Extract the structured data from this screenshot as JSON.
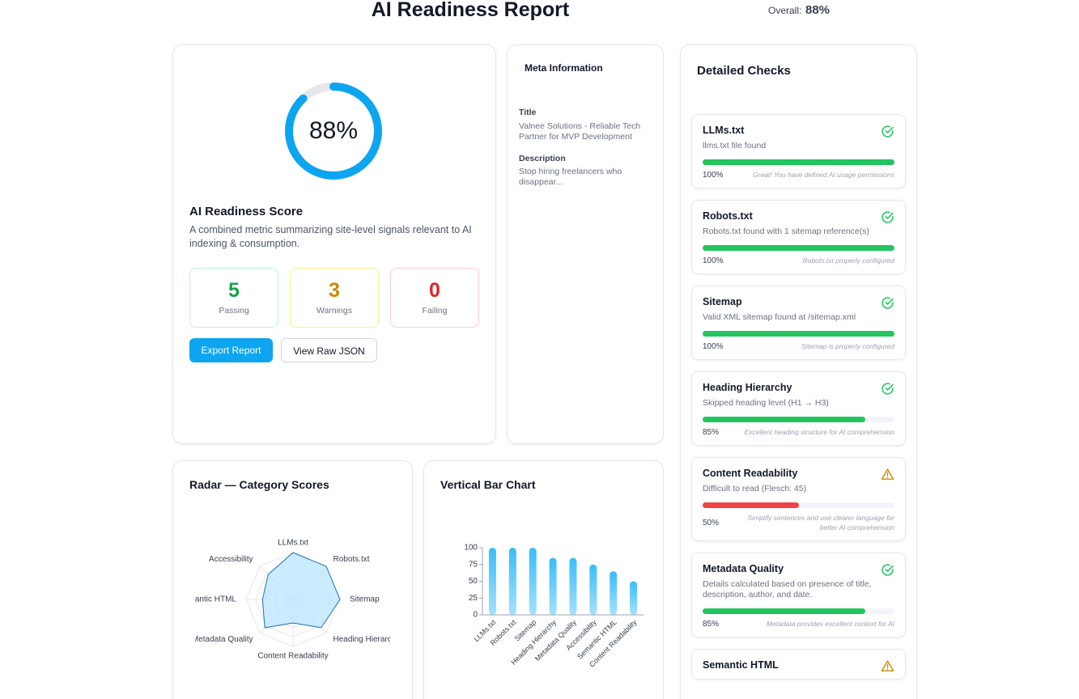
{
  "header": {
    "title": "AI Readiness Report",
    "overall_label": "Overall:",
    "overall_value": "88%"
  },
  "score_card": {
    "score": 88,
    "score_label": "88%",
    "title": "AI Readiness Score",
    "description": "A combined metric summarizing site-level signals relevant to AI indexing & consumption.",
    "stats": [
      {
        "value": 5,
        "label": "Passing"
      },
      {
        "value": 3,
        "label": "Warnings"
      },
      {
        "value": 0,
        "label": "Failing"
      }
    ],
    "buttons": [
      "Export Report",
      "View Raw JSON"
    ]
  },
  "meta": {
    "title": "Meta Information",
    "fields": [
      {
        "label": "Title",
        "value": "Valnee Solutions - Reliable Tech Partner for MVP Development"
      },
      {
        "label": "Description",
        "value": "Stop hiring freelancers who disappear..."
      }
    ]
  },
  "checks": {
    "title": "Detailed Checks",
    "items": [
      {
        "name": "LLMs.txt",
        "message": "llms.txt file found",
        "score": 100,
        "score_label": "100%",
        "note": "Great! You have defined AI usage permissions",
        "status": "pass",
        "color": "#22c55e"
      },
      {
        "name": "Robots.txt",
        "message": "Robots.txt found with 1 sitemap reference(s)",
        "score": 100,
        "score_label": "100%",
        "note": "Robots.txt properly configured",
        "status": "pass",
        "color": "#22c55e"
      },
      {
        "name": "Sitemap",
        "message": "Valid XML sitemap found at /sitemap.xml",
        "score": 100,
        "score_label": "100%",
        "note": "Sitemap is properly configured",
        "status": "pass",
        "color": "#22c55e"
      },
      {
        "name": "Heading Hierarchy",
        "message": "Skipped heading level (H1 → H3)",
        "score": 85,
        "score_label": "85%",
        "note": "Excellent heading structure for AI comprehension",
        "status": "pass",
        "color": "#22c55e"
      },
      {
        "name": "Content Readability",
        "message": "Difficult to read (Flesch: 45)",
        "score": 50,
        "score_label": "50%",
        "note": "Simplify sentences and use clearer language for better AI comprehension",
        "status": "warn",
        "color": "#ef4444"
      },
      {
        "name": "Metadata Quality",
        "message": "Details calculated based on presence of title, description, author, and date.",
        "score": 85,
        "score_label": "85%",
        "note": "Metadata provides excellent context for AI",
        "status": "pass",
        "color": "#22c55e"
      },
      {
        "name": "Semantic HTML",
        "status": "warn"
      }
    ]
  },
  "radar": {
    "type": "radar",
    "title": "Radar — Category Scores",
    "categories": [
      "LLMs.txt",
      "Robots.txt",
      "Sitemap",
      "Heading Hierarchy",
      "Content Readability",
      "Metadata Quality",
      "Semantic HTML",
      "Accessibility"
    ],
    "values": [
      100,
      100,
      100,
      85,
      50,
      85,
      65,
      75
    ],
    "rlim": [
      0,
      100
    ],
    "rticks": [
      20,
      40,
      60,
      80,
      100
    ],
    "color": "#1d6fb8"
  },
  "bar_chart": {
    "type": "bar",
    "title": "Vertical Bar Chart",
    "categories": [
      "LLMs.txt",
      "Robots.txt",
      "Sitemap",
      "Heading Hierarchy",
      "Metadata Quality",
      "Accessibility",
      "Semantic HTML",
      "Content Readability"
    ],
    "values": [
      100,
      100,
      100,
      85,
      85,
      75,
      65,
      50
    ],
    "ylim": [
      0,
      100
    ],
    "yticks": [
      0,
      25,
      50,
      75,
      100
    ],
    "color": "#38bdf8"
  }
}
